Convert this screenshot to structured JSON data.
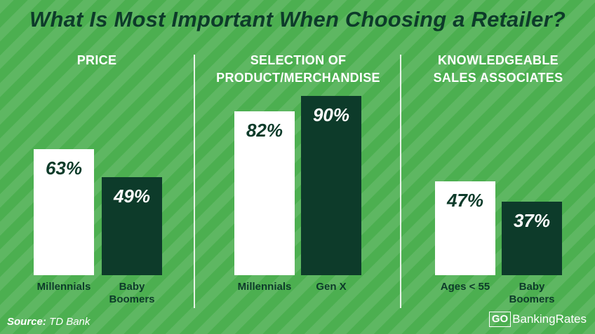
{
  "title": "What Is Most Important When Choosing a Retailer?",
  "source": {
    "label": "Source:",
    "value": "TD Bank"
  },
  "brand": {
    "go": "GO",
    "name": "BankingRates"
  },
  "colors": {
    "background": "#4caf50",
    "dark": "#0d3b2a",
    "light": "#ffffff"
  },
  "chart_data": [
    {
      "type": "bar",
      "title": "PRICE",
      "categories": [
        "Millennials",
        "Baby Boomers"
      ],
      "values": [
        63,
        49
      ],
      "value_labels": [
        "63%",
        "49%"
      ],
      "unit": "%",
      "ylim": [
        0,
        100
      ],
      "colors": [
        "#ffffff",
        "#0d3b2a"
      ],
      "grid": false
    },
    {
      "type": "bar",
      "title": "SELECTION OF PRODUCT/MERCHANDISE",
      "categories": [
        "Millennials",
        "Gen X"
      ],
      "values": [
        82,
        90
      ],
      "value_labels": [
        "82%",
        "90%"
      ],
      "unit": "%",
      "ylim": [
        0,
        100
      ],
      "colors": [
        "#ffffff",
        "#0d3b2a"
      ],
      "grid": false
    },
    {
      "type": "bar",
      "title": "KNOWLEDGEABLE SALES ASSOCIATES",
      "categories": [
        "Ages < 55",
        "Baby Boomers"
      ],
      "values": [
        47,
        37
      ],
      "value_labels": [
        "47%",
        "37%"
      ],
      "unit": "%",
      "ylim": [
        0,
        100
      ],
      "colors": [
        "#ffffff",
        "#0d3b2a"
      ],
      "grid": false
    }
  ]
}
